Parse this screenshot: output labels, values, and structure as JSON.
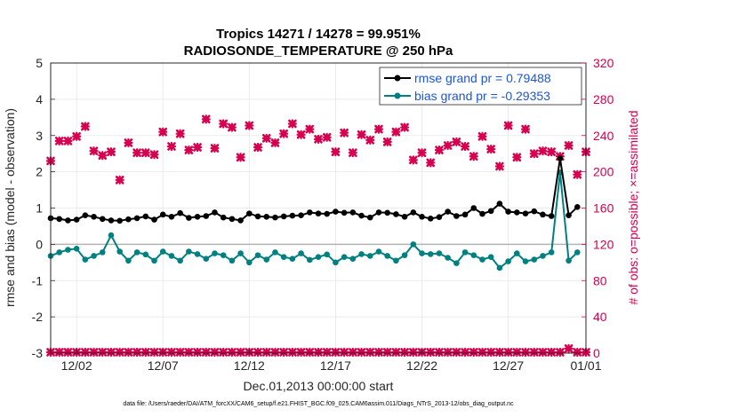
{
  "chart_data": {
    "type": "line",
    "title_line1": "Tropics 14271 / 14278 = 99.951%",
    "title_line2": "RADIOSONDE_TEMPERATURE @ 250 hPa",
    "xlabel": "Dec.01,2013 00:00:00 start",
    "ylabel_left": "rmse and bias (model - observation)",
    "ylabel_right": "# of obs: o=possible; ×=assimilated",
    "footer": "data file: /Users/raeder/DAI/ATM_forcXX/CAM6_setup/f.e21.FHIST_BGC.f09_025.CAM6assim.011/Diags_NTrS_2013-12/obs_diag_output.nc",
    "xlim": [
      0,
      62
    ],
    "ylim_left": [
      -3,
      5
    ],
    "ylim_right": [
      0,
      320
    ],
    "x_ticks": [
      {
        "x": 3,
        "label": "12/02"
      },
      {
        "x": 13,
        "label": "12/07"
      },
      {
        "x": 23,
        "label": "12/12"
      },
      {
        "x": 33,
        "label": "12/17"
      },
      {
        "x": 43,
        "label": "12/22"
      },
      {
        "x": 53,
        "label": "12/27"
      },
      {
        "x": 63,
        "label": "01/01"
      }
    ],
    "y_ticks_left": [
      -3,
      -2,
      -1,
      0,
      1,
      2,
      3,
      4,
      5
    ],
    "y_ticks_right": [
      0,
      40,
      80,
      120,
      160,
      200,
      240,
      280,
      320
    ],
    "legend": [
      {
        "name": "rmse grand pr = 0.79488",
        "color": "#000000"
      },
      {
        "name": "bias grand pr = -0.29353",
        "color": "#008080"
      }
    ],
    "colors": {
      "rmse": "#000000",
      "bias": "#008080",
      "obs": "#d6004f",
      "zero_line": "#b3b3b3"
    },
    "series": [
      {
        "name": "rmse",
        "axis": "left",
        "x": [
          0,
          1,
          2,
          3,
          4,
          5,
          6,
          7,
          8,
          9,
          10,
          11,
          12,
          13,
          14,
          15,
          16,
          17,
          18,
          19,
          20,
          21,
          22,
          23,
          24,
          25,
          26,
          27,
          28,
          29,
          30,
          31,
          32,
          33,
          34,
          35,
          36,
          37,
          38,
          39,
          40,
          41,
          42,
          43,
          44,
          45,
          46,
          47,
          48,
          49,
          50,
          51,
          52,
          53,
          54,
          55,
          56,
          57,
          58,
          59,
          60,
          61,
          62
        ],
        "values": [
          0.72,
          0.7,
          0.66,
          0.68,
          0.8,
          0.76,
          0.7,
          0.66,
          0.65,
          0.69,
          0.72,
          0.77,
          0.68,
          0.82,
          0.76,
          0.86,
          0.73,
          0.76,
          0.78,
          0.88,
          0.74,
          0.7,
          0.66,
          0.85,
          0.77,
          0.76,
          0.74,
          0.77,
          0.79,
          0.8,
          0.88,
          0.85,
          0.84,
          0.9,
          0.87,
          0.88,
          0.79,
          0.74,
          0.88,
          0.87,
          0.83,
          0.76,
          0.88,
          0.76,
          0.71,
          0.75,
          0.9,
          0.78,
          0.82,
          1.0,
          0.84,
          0.92,
          1.12,
          0.9,
          0.88,
          0.85,
          0.91,
          0.82,
          0.78,
          2.37,
          0.8,
          1.03,
          null
        ]
      },
      {
        "name": "bias",
        "axis": "left",
        "x": [
          0,
          1,
          2,
          3,
          4,
          5,
          6,
          7,
          8,
          9,
          10,
          11,
          12,
          13,
          14,
          15,
          16,
          17,
          18,
          19,
          20,
          21,
          22,
          23,
          24,
          25,
          26,
          27,
          28,
          29,
          30,
          31,
          32,
          33,
          34,
          35,
          36,
          37,
          38,
          39,
          40,
          41,
          42,
          43,
          44,
          45,
          46,
          47,
          48,
          49,
          50,
          51,
          52,
          53,
          54,
          55,
          56,
          57,
          58,
          59,
          60,
          61,
          62
        ],
        "values": [
          -0.32,
          -0.22,
          -0.15,
          -0.12,
          -0.42,
          -0.32,
          -0.22,
          0.25,
          -0.2,
          -0.45,
          -0.22,
          -0.28,
          -0.45,
          -0.2,
          -0.32,
          -0.45,
          -0.2,
          -0.27,
          -0.4,
          -0.25,
          -0.3,
          -0.45,
          -0.25,
          -0.5,
          -0.3,
          -0.42,
          -0.22,
          -0.35,
          -0.4,
          -0.25,
          -0.43,
          -0.35,
          -0.28,
          -0.5,
          -0.35,
          -0.4,
          -0.27,
          -0.32,
          -0.2,
          -0.32,
          -0.45,
          -0.3,
          0.0,
          -0.25,
          -0.27,
          -0.25,
          -0.37,
          -0.52,
          -0.22,
          -0.3,
          -0.42,
          -0.35,
          -0.65,
          -0.47,
          -0.25,
          -0.47,
          -0.42,
          -0.32,
          -0.22,
          1.98,
          -0.45,
          -0.22,
          null
        ]
      },
      {
        "name": "obs_count",
        "axis": "right",
        "x": [
          0,
          1,
          2,
          3,
          4,
          5,
          6,
          7,
          8,
          9,
          10,
          11,
          12,
          13,
          14,
          15,
          16,
          17,
          18,
          19,
          20,
          21,
          22,
          23,
          24,
          25,
          26,
          27,
          28,
          29,
          30,
          31,
          32,
          33,
          34,
          35,
          36,
          37,
          38,
          39,
          40,
          41,
          42,
          43,
          44,
          45,
          46,
          47,
          48,
          49,
          50,
          51,
          52,
          53,
          54,
          55,
          56,
          57,
          58,
          59,
          60,
          61,
          62
        ],
        "values": [
          212,
          234,
          234,
          239,
          250,
          223,
          218,
          222,
          191,
          232,
          221,
          221,
          219,
          244,
          228,
          242,
          224,
          227,
          258,
          226,
          253,
          249,
          216,
          251,
          227,
          237,
          232,
          242,
          253,
          241,
          247,
          236,
          238,
          222,
          243,
          221,
          241,
          235,
          247,
          233,
          244,
          249,
          213,
          221,
          210,
          224,
          229,
          233,
          228,
          217,
          239,
          225,
          206,
          251,
          216,
          247,
          220,
          223,
          222,
          217,
          229,
          197,
          222
        ]
      },
      {
        "name": "obs_possible",
        "axis": "right",
        "x": [
          0,
          1,
          2,
          3,
          4,
          5,
          6,
          7,
          8,
          9,
          10,
          11,
          12,
          13,
          14,
          15,
          16,
          17,
          18,
          19,
          20,
          21,
          22,
          23,
          24,
          25,
          26,
          27,
          28,
          29,
          30,
          31,
          32,
          33,
          34,
          35,
          36,
          37,
          38,
          39,
          40,
          41,
          42,
          43,
          44,
          45,
          46,
          47,
          48,
          49,
          50,
          51,
          52,
          53,
          54,
          55,
          56,
          57,
          58,
          59,
          60,
          61,
          62
        ],
        "values": [
          1,
          1,
          1,
          1,
          1,
          1,
          1,
          1,
          1,
          1,
          1,
          1,
          1,
          1,
          1,
          1,
          1,
          1,
          1,
          1,
          1,
          1,
          1,
          1,
          1,
          1,
          1,
          1,
          1,
          1,
          1,
          1,
          1,
          1,
          1,
          1,
          1,
          1,
          1,
          1,
          1,
          1,
          1,
          1,
          1,
          1,
          1,
          1,
          1,
          1,
          1,
          1,
          1,
          1,
          1,
          1,
          1,
          1,
          1,
          1,
          5,
          1,
          1
        ]
      }
    ]
  }
}
